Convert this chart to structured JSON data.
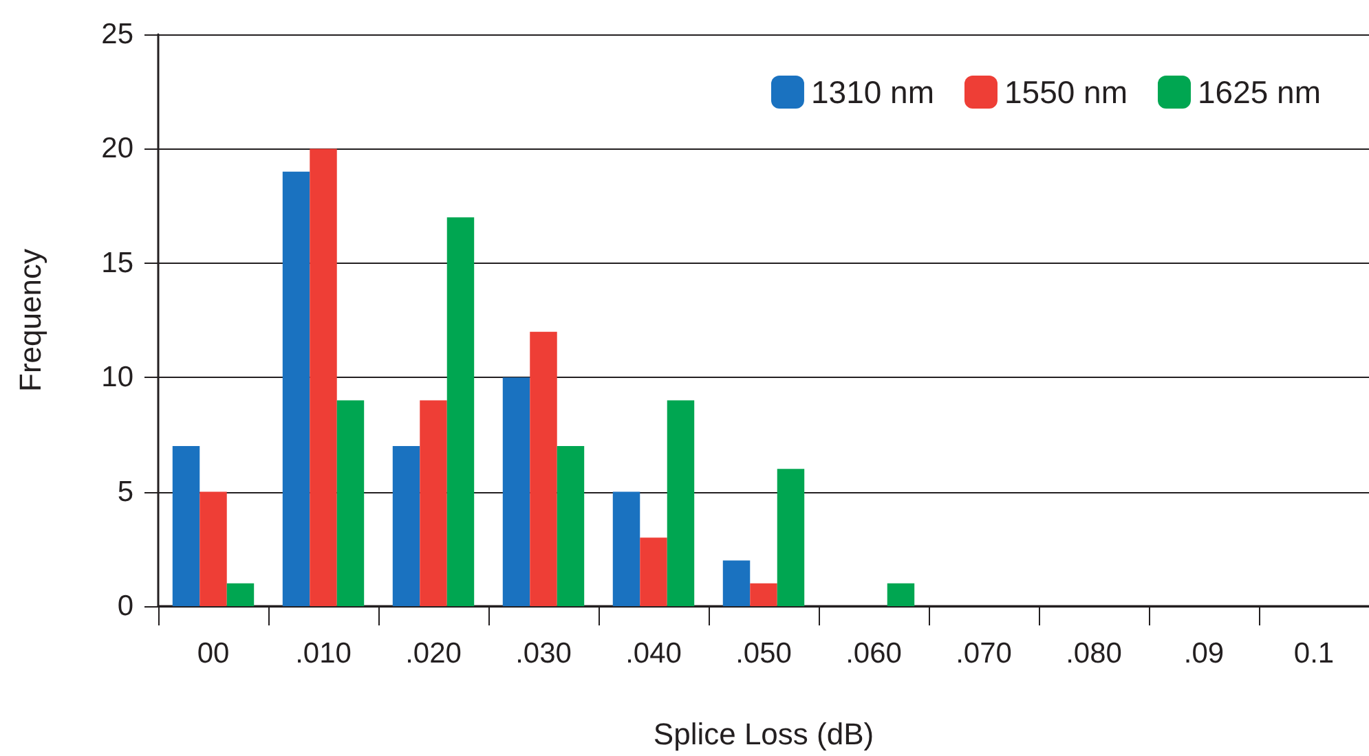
{
  "chart_data": {
    "type": "bar",
    "xlabel": "Splice Loss (dB)",
    "ylabel": "Frequency",
    "categories": [
      "00",
      ".010",
      ".020",
      ".030",
      ".040",
      ".050",
      ".060",
      ".070",
      ".080",
      ".09",
      "0.1"
    ],
    "series": [
      {
        "name": "1310 nm",
        "color": "#1a72c0",
        "values": [
          7,
          19,
          7,
          10,
          5,
          2,
          0,
          0,
          0,
          0,
          0
        ]
      },
      {
        "name": "1550 nm",
        "color": "#ee3e36",
        "values": [
          5,
          20,
          9,
          12,
          3,
          1,
          0,
          0,
          0,
          0,
          0
        ]
      },
      {
        "name": "1625 nm",
        "color": "#00a651",
        "values": [
          1,
          9,
          17,
          7,
          9,
          6,
          1,
          0,
          0,
          0,
          0
        ]
      }
    ],
    "ylim": [
      0,
      25
    ],
    "yticks": [
      0,
      5,
      10,
      15,
      20,
      25
    ],
    "grid": "y",
    "legend": "top right"
  }
}
